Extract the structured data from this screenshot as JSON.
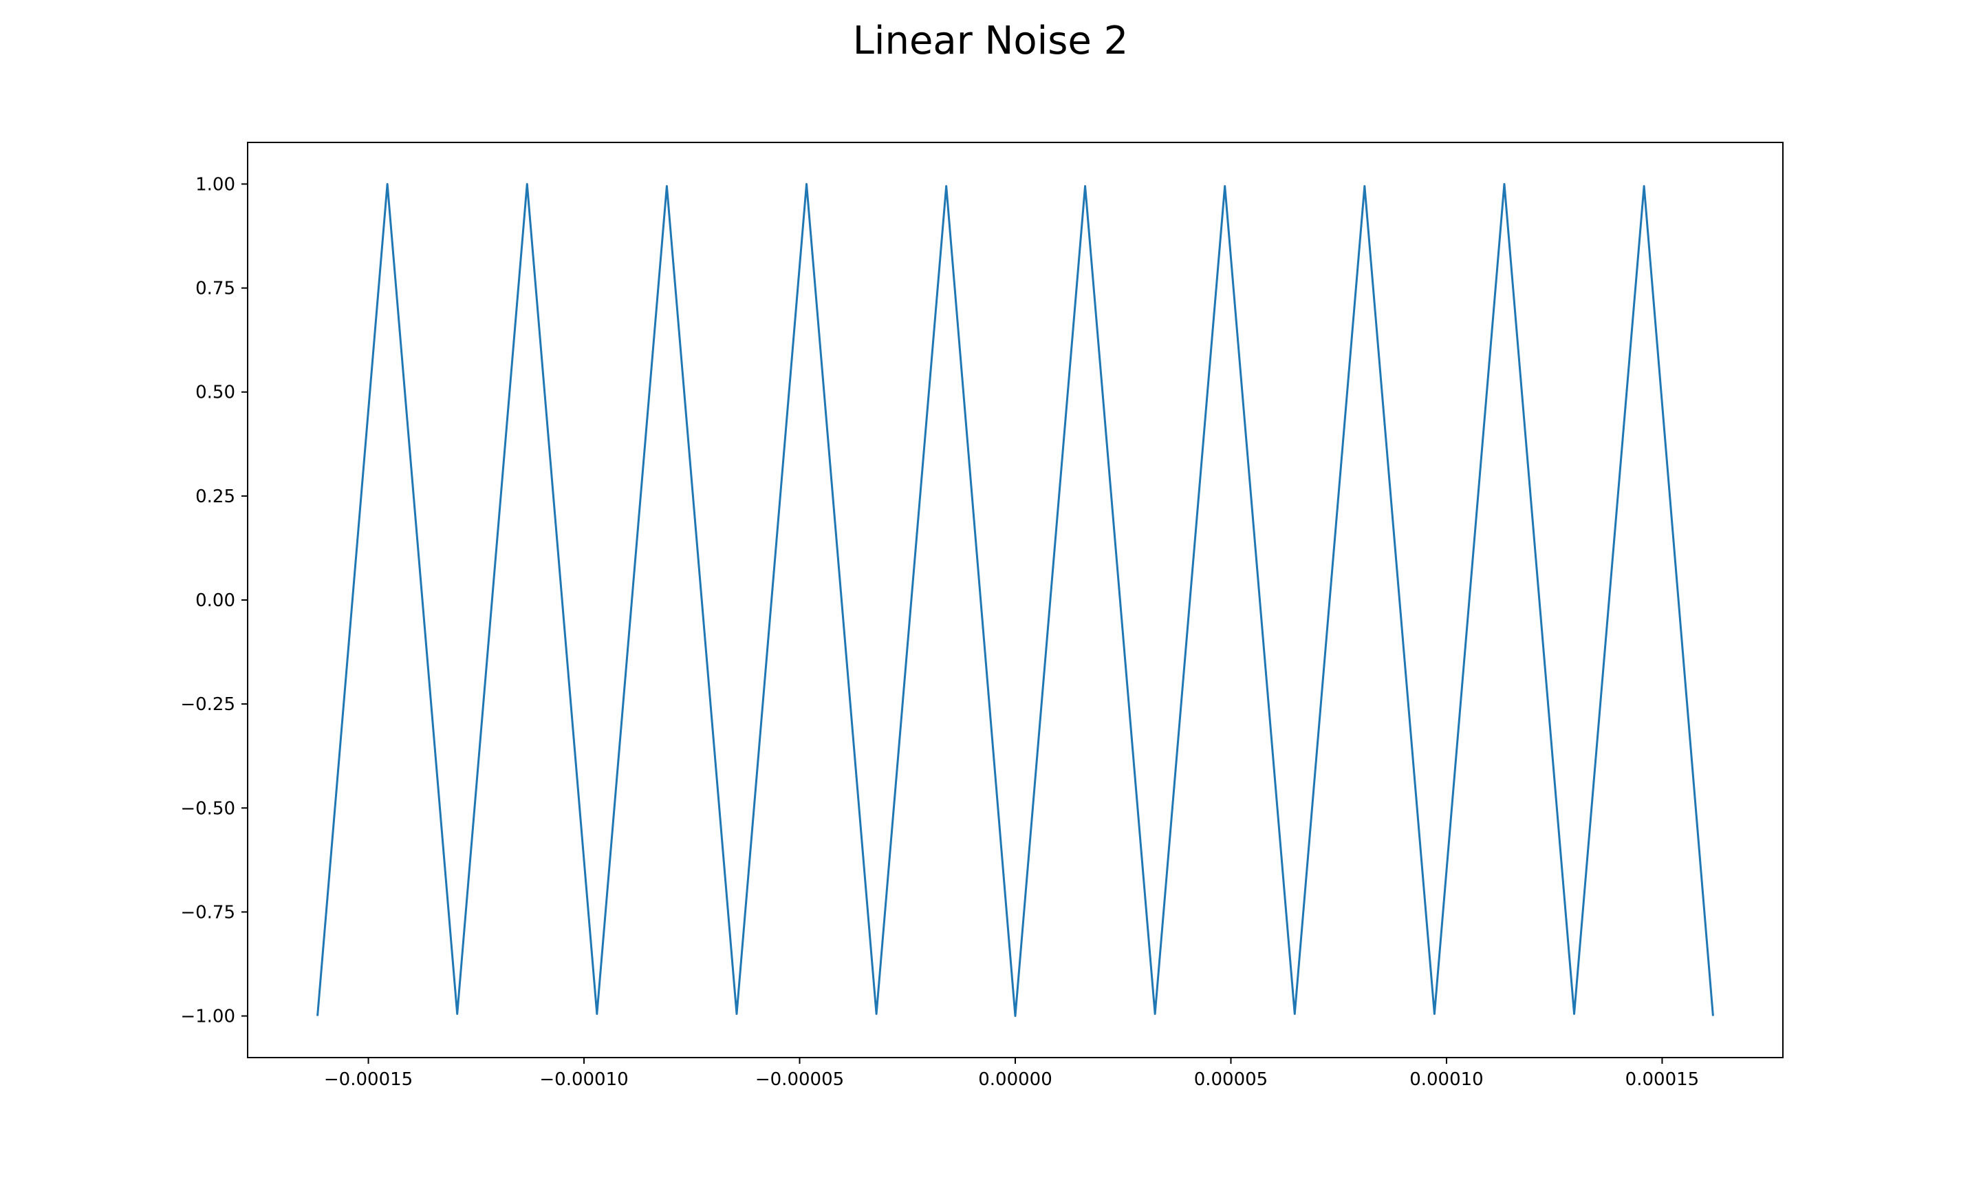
{
  "colors": {
    "line": "#1f77b4",
    "axes": "#000000",
    "background": "#ffffff"
  },
  "chart_data": {
    "type": "line",
    "title": "Linear Noise 2",
    "xlabel": "",
    "ylabel": "",
    "grid": false,
    "legend": "none",
    "xlim": [
      -0.000178,
      0.000178
    ],
    "ylim": [
      -1.1,
      1.1
    ],
    "xticks": [
      {
        "value": -0.00015,
        "label": "−0.00015"
      },
      {
        "value": -0.0001,
        "label": "−0.00010"
      },
      {
        "value": -5e-05,
        "label": "−0.00005"
      },
      {
        "value": 0.0,
        "label": "0.00000"
      },
      {
        "value": 5e-05,
        "label": "0.00005"
      },
      {
        "value": 0.0001,
        "label": "0.00010"
      },
      {
        "value": 0.00015,
        "label": "0.00015"
      }
    ],
    "yticks": [
      {
        "value": 1.0,
        "label": "1.00"
      },
      {
        "value": 0.75,
        "label": "0.75"
      },
      {
        "value": 0.5,
        "label": "0.50"
      },
      {
        "value": 0.25,
        "label": "0.25"
      },
      {
        "value": 0.0,
        "label": "0.00"
      },
      {
        "value": -0.25,
        "label": "−0.25"
      },
      {
        "value": -0.5,
        "label": "−0.50"
      },
      {
        "value": -0.75,
        "label": "−0.75"
      },
      {
        "value": -1.0,
        "label": "−1.00"
      }
    ],
    "series": [
      {
        "x": [
          -0.0001618,
          -0.0001456,
          -0.0001294,
          -0.0001132,
          -9.7e-05,
          -8.08e-05,
          -6.46e-05,
          -4.84e-05,
          -3.22e-05,
          -1.6e-05,
          0.0,
          1.62e-05,
          3.24e-05,
          4.86e-05,
          6.48e-05,
          8.1e-05,
          9.72e-05,
          0.0001134,
          0.0001296,
          0.0001458,
          0.0001618
        ],
        "y": [
          -1.0,
          1.0,
          -0.995,
          1.0,
          -0.995,
          0.995,
          -0.995,
          1.0,
          -0.995,
          0.995,
          -1.0,
          0.995,
          -0.995,
          0.995,
          -0.995,
          0.995,
          -0.995,
          1.0,
          -0.995,
          0.995,
          -1.0
        ]
      }
    ]
  }
}
